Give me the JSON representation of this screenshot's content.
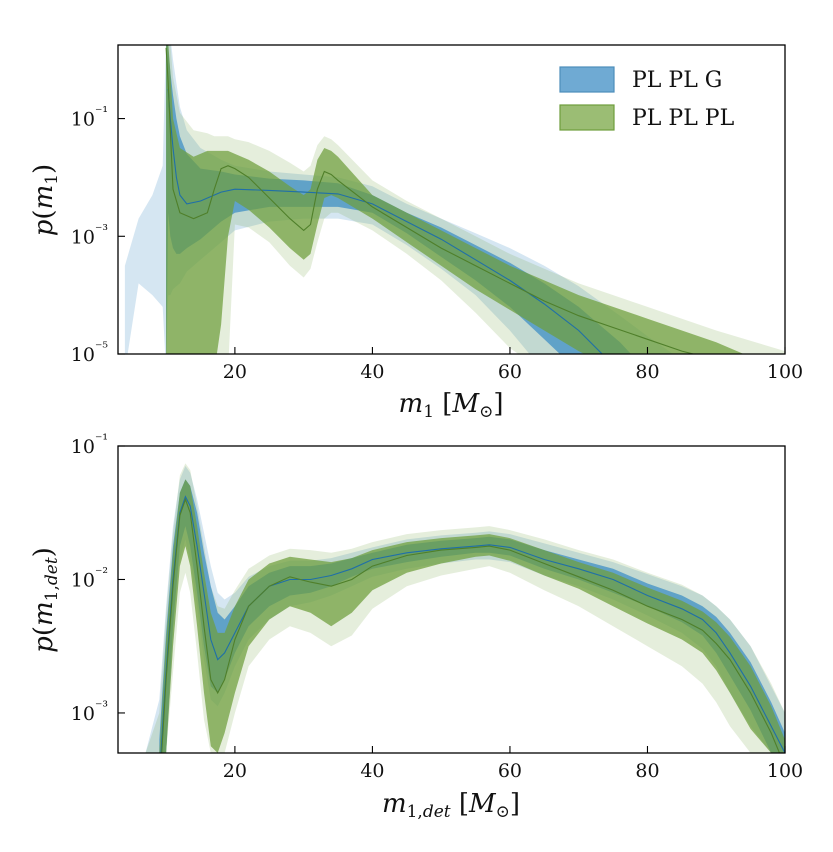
{
  "chart_data": [
    {
      "type": "area",
      "panel": "top",
      "xlabel": "m₁ [M⊙]",
      "ylabel": "p(m₁)",
      "xlim": [
        3,
        100
      ],
      "ylim_log10": [
        -5,
        0.25
      ],
      "y_scale": "log",
      "x_ticks": [
        20,
        40,
        60,
        80,
        100
      ],
      "y_tick_labels": [
        "10⁻¹",
        "10⁻³",
        "10⁻⁵"
      ],
      "legend": {
        "placement": "top-right",
        "entries": [
          "PL PL G",
          "PL PL PL"
        ]
      },
      "colors": {
        "PL PL G": "#3f8fc4",
        "PL PL PL": "#6e9e3c"
      },
      "series": [
        {
          "name": "PL PL G",
          "x": [
            4,
            6,
            8,
            9.5,
            10,
            10.3,
            10.6,
            11,
            11.5,
            12,
            13,
            15,
            18,
            20,
            25,
            30,
            35,
            40,
            45,
            50,
            55,
            60,
            65,
            70,
            73,
            76,
            80,
            85,
            90,
            100
          ],
          "median": [
            null,
            null,
            null,
            null,
            null,
            -0.5,
            -1.0,
            -1.5,
            -2.0,
            -2.3,
            -2.45,
            -2.4,
            -2.25,
            -2.2,
            -2.22,
            -2.25,
            -2.28,
            -2.45,
            -2.75,
            -3.05,
            -3.4,
            -3.75,
            -4.15,
            -4.6,
            -4.95,
            -5.3,
            null,
            null,
            null,
            null
          ],
          "inner_low": [
            null,
            null,
            null,
            null,
            -5.3,
            -2.6,
            -3.0,
            -3.2,
            -3.3,
            -3.3,
            -3.2,
            -3.05,
            -2.75,
            -2.6,
            -2.5,
            -2.5,
            -2.5,
            -2.6,
            -2.95,
            -3.35,
            -3.75,
            -4.2,
            -4.75,
            -5.3,
            null,
            null,
            null,
            null,
            null,
            null
          ],
          "inner_high": [
            null,
            null,
            null,
            null,
            0.4,
            0.2,
            -0.2,
            -0.6,
            -1.0,
            -1.3,
            -1.6,
            -1.85,
            -1.9,
            -1.95,
            -2.02,
            -2.05,
            -2.1,
            -2.3,
            -2.6,
            -2.85,
            -3.15,
            -3.45,
            -3.8,
            -4.2,
            -4.5,
            -4.8,
            -5.3,
            null,
            null,
            null
          ],
          "outer_low": [
            -5.3,
            -3.8,
            -4.0,
            -4.2,
            -5.3,
            -4.0,
            -4.0,
            -3.9,
            -3.85,
            -3.8,
            -3.6,
            -3.4,
            -3.1,
            -2.9,
            -2.75,
            -2.7,
            -2.7,
            -2.8,
            -3.15,
            -3.55,
            -4.0,
            -4.6,
            -5.3,
            null,
            null,
            null,
            null,
            null,
            null,
            null
          ],
          "outer_high": [
            -3.5,
            -2.7,
            -2.3,
            -1.8,
            0.4,
            0.4,
            0.4,
            0.0,
            -0.4,
            -0.8,
            -1.2,
            -1.5,
            -1.7,
            -1.8,
            -1.9,
            -1.95,
            -2.0,
            -2.15,
            -2.45,
            -2.7,
            -2.95,
            -3.2,
            -3.5,
            -3.85,
            -4.1,
            -4.35,
            -4.7,
            -5.1,
            -5.3,
            null
          ]
        },
        {
          "name": "PL PL PL",
          "x": [
            10,
            10.3,
            10.6,
            11,
            12,
            14,
            16,
            17,
            18,
            19,
            20,
            22,
            25,
            28,
            30,
            31,
            32,
            33,
            34,
            35,
            40,
            45,
            50,
            55,
            60,
            65,
            70,
            75,
            80,
            85,
            90,
            100
          ],
          "median": [
            0.2,
            -0.4,
            -1.2,
            -2.2,
            -2.6,
            -2.7,
            -2.6,
            -2.2,
            -1.85,
            -1.8,
            -1.85,
            -2.0,
            -2.35,
            -2.7,
            -2.9,
            -2.8,
            -2.2,
            -1.9,
            -1.95,
            -2.05,
            -2.5,
            -2.85,
            -3.2,
            -3.5,
            -3.8,
            -4.1,
            -4.35,
            -4.55,
            -4.75,
            -4.95,
            -5.1,
            -5.4
          ],
          "inner_low": [
            -5.3,
            -5.3,
            -5.3,
            -5.3,
            -5.3,
            -5.3,
            -5.3,
            -5.3,
            -4.5,
            -3.0,
            -2.4,
            -2.55,
            -2.85,
            -3.2,
            -3.4,
            -3.3,
            -2.8,
            -2.35,
            -2.3,
            -2.35,
            -2.7,
            -3.1,
            -3.5,
            -3.9,
            -4.25,
            -4.6,
            -4.95,
            -5.25,
            null,
            null,
            null,
            null
          ],
          "inner_high": [
            0.4,
            0.3,
            -0.2,
            -1.0,
            -1.5,
            -1.65,
            -1.55,
            -1.55,
            -1.55,
            -1.55,
            -1.6,
            -1.7,
            -1.9,
            -2.15,
            -2.3,
            -2.2,
            -1.7,
            -1.5,
            -1.55,
            -1.65,
            -2.3,
            -2.6,
            -2.9,
            -3.2,
            -3.5,
            -3.75,
            -4.0,
            -4.2,
            -4.4,
            -4.6,
            -4.8,
            -5.3
          ],
          "outer_low": [
            -5.3,
            -5.3,
            -5.3,
            -5.3,
            -5.3,
            -5.3,
            -5.3,
            -5.3,
            -5.3,
            -5.3,
            -2.8,
            -2.85,
            -3.1,
            -3.5,
            -3.7,
            -3.55,
            -3.1,
            -2.7,
            -2.6,
            -2.6,
            -2.9,
            -3.3,
            -3.75,
            -4.3,
            -4.9,
            -5.3,
            null,
            null,
            null,
            null,
            null,
            null
          ],
          "outer_high": [
            0.4,
            0.4,
            0.3,
            -0.3,
            -0.9,
            -1.2,
            -1.25,
            -1.3,
            -1.3,
            -1.3,
            -1.35,
            -1.4,
            -1.55,
            -1.75,
            -1.9,
            -1.8,
            -1.45,
            -1.3,
            -1.35,
            -1.45,
            -2.05,
            -2.4,
            -2.7,
            -3.0,
            -3.3,
            -3.55,
            -3.8,
            -4.0,
            -4.2,
            -4.4,
            -4.6,
            -4.95
          ]
        }
      ]
    },
    {
      "type": "area",
      "panel": "bottom",
      "xlabel": "m₁,det [M⊙]",
      "ylabel": "p(m₁,det)",
      "xlim": [
        3,
        100
      ],
      "ylim_log10": [
        -3.3,
        -1
      ],
      "y_scale": "log",
      "x_ticks": [
        20,
        40,
        60,
        80,
        100
      ],
      "y_tick_labels": [
        "10⁻¹",
        "10⁻²",
        "10⁻³"
      ],
      "colors": {
        "PL PL G": "#3f8fc4",
        "PL PL PL": "#6e9e3c"
      },
      "series": [
        {
          "name": "PL PL G",
          "x": [
            7,
            9,
            10,
            11,
            12,
            12.8,
            13.5,
            14.5,
            15.5,
            16.5,
            17.5,
            18.5,
            20,
            22,
            25,
            28,
            31,
            34,
            37,
            40,
            45,
            50,
            55,
            57,
            60,
            65,
            70,
            75,
            80,
            85,
            88,
            90,
            92,
            95,
            98,
            100
          ],
          "median": [
            null,
            -3.5,
            -2.7,
            -2.0,
            -1.5,
            -1.38,
            -1.45,
            -1.75,
            -2.1,
            -2.45,
            -2.6,
            -2.55,
            -2.4,
            -2.2,
            -2.05,
            -2.0,
            -2.0,
            -1.97,
            -1.92,
            -1.85,
            -1.8,
            -1.77,
            -1.75,
            -1.74,
            -1.76,
            -1.85,
            -1.92,
            -2.0,
            -2.12,
            -2.22,
            -2.3,
            -2.4,
            -2.55,
            -2.8,
            -3.1,
            -3.3
          ],
          "inner_low": [
            null,
            null,
            -3.3,
            -2.35,
            -1.75,
            -1.6,
            -1.75,
            -2.1,
            -2.5,
            -2.8,
            -2.85,
            -2.75,
            -2.55,
            -2.35,
            -2.2,
            -2.12,
            -2.1,
            -2.05,
            -1.98,
            -1.92,
            -1.87,
            -1.83,
            -1.8,
            -1.8,
            -1.82,
            -1.92,
            -2.0,
            -2.1,
            -2.2,
            -2.32,
            -2.42,
            -2.55,
            -2.72,
            -2.98,
            -3.3,
            null
          ],
          "inner_high": [
            null,
            -3.2,
            -2.4,
            -1.75,
            -1.35,
            -1.25,
            -1.3,
            -1.5,
            -1.8,
            -2.05,
            -2.25,
            -2.3,
            -2.2,
            -2.05,
            -1.95,
            -1.9,
            -1.9,
            -1.88,
            -1.84,
            -1.8,
            -1.74,
            -1.71,
            -1.69,
            -1.68,
            -1.7,
            -1.78,
            -1.85,
            -1.92,
            -2.03,
            -2.12,
            -2.2,
            -2.28,
            -2.4,
            -2.62,
            -2.92,
            -3.15
          ],
          "outer_low": [
            null,
            null,
            -3.3,
            -2.5,
            -1.85,
            -1.7,
            -1.85,
            -2.2,
            -2.6,
            -2.9,
            -2.95,
            -2.85,
            -2.65,
            -2.45,
            -2.3,
            -2.2,
            -2.17,
            -2.12,
            -2.05,
            -1.98,
            -1.92,
            -1.88,
            -1.85,
            -1.85,
            -1.87,
            -1.97,
            -2.05,
            -2.15,
            -2.27,
            -2.4,
            -2.52,
            -2.65,
            -2.85,
            -3.1,
            -3.3,
            null
          ],
          "outer_high": [
            -3.3,
            -2.9,
            -2.2,
            -1.6,
            -1.25,
            -1.15,
            -1.2,
            -1.4,
            -1.65,
            -1.9,
            -2.1,
            -2.15,
            -2.1,
            -1.98,
            -1.9,
            -1.86,
            -1.86,
            -1.84,
            -1.8,
            -1.76,
            -1.7,
            -1.67,
            -1.65,
            -1.64,
            -1.66,
            -1.73,
            -1.8,
            -1.87,
            -1.96,
            -2.05,
            -2.12,
            -2.2,
            -2.3,
            -2.5,
            -2.8,
            -3.0
          ]
        },
        {
          "name": "PL PL PL",
          "x": [
            7,
            9,
            10,
            11,
            12,
            12.8,
            13.5,
            14.5,
            15.5,
            16.5,
            17.5,
            18.5,
            20,
            22,
            25,
            28,
            31,
            34,
            37,
            40,
            45,
            50,
            55,
            57,
            60,
            65,
            70,
            75,
            80,
            85,
            88,
            90,
            92,
            95,
            98,
            100
          ],
          "median": [
            null,
            -3.6,
            -2.75,
            -2.05,
            -1.52,
            -1.4,
            -1.5,
            -1.9,
            -2.35,
            -2.75,
            -2.85,
            -2.75,
            -2.45,
            -2.2,
            -2.05,
            -1.98,
            -2.02,
            -2.05,
            -2.0,
            -1.9,
            -1.82,
            -1.78,
            -1.76,
            -1.75,
            -1.78,
            -1.88,
            -1.98,
            -2.08,
            -2.2,
            -2.3,
            -2.38,
            -2.48,
            -2.6,
            -2.85,
            -3.15,
            -3.4
          ],
          "inner_low": [
            null,
            null,
            -3.3,
            -2.5,
            -1.9,
            -1.75,
            -1.9,
            -2.35,
            -2.85,
            -3.25,
            -3.3,
            -3.15,
            -2.85,
            -2.5,
            -2.3,
            -2.2,
            -2.25,
            -2.35,
            -2.25,
            -2.08,
            -1.95,
            -1.88,
            -1.83,
            -1.82,
            -1.86,
            -1.97,
            -2.07,
            -2.2,
            -2.33,
            -2.45,
            -2.55,
            -2.68,
            -2.85,
            -3.12,
            -3.3,
            null
          ],
          "inner_high": [
            null,
            -3.3,
            -2.45,
            -1.8,
            -1.35,
            -1.25,
            -1.3,
            -1.6,
            -1.95,
            -2.25,
            -2.4,
            -2.4,
            -2.2,
            -2.0,
            -1.88,
            -1.83,
            -1.85,
            -1.87,
            -1.84,
            -1.78,
            -1.72,
            -1.69,
            -1.67,
            -1.66,
            -1.69,
            -1.78,
            -1.87,
            -1.95,
            -2.06,
            -2.16,
            -2.24,
            -2.32,
            -2.43,
            -2.65,
            -2.95,
            -3.2
          ],
          "outer_low": [
            null,
            null,
            -3.3,
            -2.7,
            -2.1,
            -1.95,
            -2.1,
            -2.55,
            -3.05,
            -3.3,
            -3.3,
            -3.3,
            -3.0,
            -2.65,
            -2.45,
            -2.35,
            -2.4,
            -2.5,
            -2.42,
            -2.22,
            -2.05,
            -1.97,
            -1.92,
            -1.9,
            -1.95,
            -2.08,
            -2.2,
            -2.35,
            -2.5,
            -2.65,
            -2.78,
            -2.92,
            -3.1,
            -3.3,
            null,
            null
          ],
          "outer_high": [
            -3.3,
            -3.0,
            -2.25,
            -1.65,
            -1.22,
            -1.13,
            -1.18,
            -1.45,
            -1.75,
            -2.05,
            -2.2,
            -2.22,
            -2.08,
            -1.92,
            -1.82,
            -1.77,
            -1.78,
            -1.8,
            -1.77,
            -1.72,
            -1.66,
            -1.63,
            -1.61,
            -1.6,
            -1.63,
            -1.7,
            -1.78,
            -1.85,
            -1.95,
            -2.04,
            -2.12,
            -2.2,
            -2.3,
            -2.5,
            -2.78,
            -3.0
          ]
        }
      ]
    }
  ]
}
